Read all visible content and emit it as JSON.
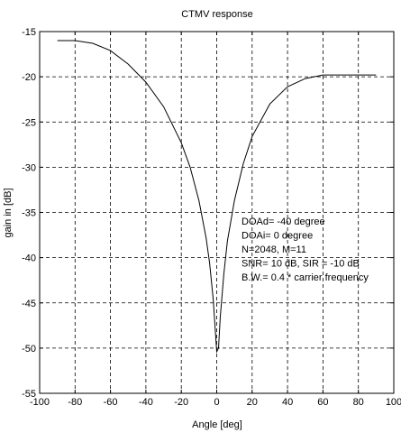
{
  "chart_data": {
    "type": "line",
    "title": "CTMV  response",
    "xlabel": "Angle [deg]",
    "ylabel": "gain in [dB]",
    "xlim": [
      -100,
      100
    ],
    "ylim": [
      -55,
      -15
    ],
    "xticks": [
      -100,
      -80,
      -60,
      -40,
      -20,
      0,
      20,
      40,
      60,
      80,
      100
    ],
    "yticks": [
      -55,
      -50,
      -45,
      -40,
      -35,
      -30,
      -25,
      -20,
      -15
    ],
    "grid": true,
    "line_color": "#000000",
    "series": [
      {
        "x": [
          -90,
          -80,
          -70,
          -60,
          -50,
          -40,
          -30,
          -20,
          -15,
          -10,
          -6,
          -4,
          -2,
          0,
          1,
          2,
          4,
          6,
          10,
          15,
          20,
          30,
          40,
          50,
          55,
          60,
          70,
          80,
          90
        ],
        "y": [
          -16,
          -16,
          -16.3,
          -17.1,
          -18.6,
          -20.6,
          -23.3,
          -27.3,
          -30,
          -33.7,
          -37.8,
          -40.6,
          -44.6,
          -50.4,
          -50,
          -46.6,
          -41.8,
          -38.2,
          -33.7,
          -29.6,
          -26.6,
          -23,
          -21.1,
          -20.2,
          -20,
          -19.8,
          -19.8,
          -19.8,
          -19.8
        ]
      }
    ],
    "annotations": [
      "DOAd= -40 degree",
      "DOAi= 0 degree",
      "N=2048, M=11",
      "SNR= 10 dB, SIR = -10 dB",
      "B.W.= 0.4 * carrier frequency"
    ]
  }
}
